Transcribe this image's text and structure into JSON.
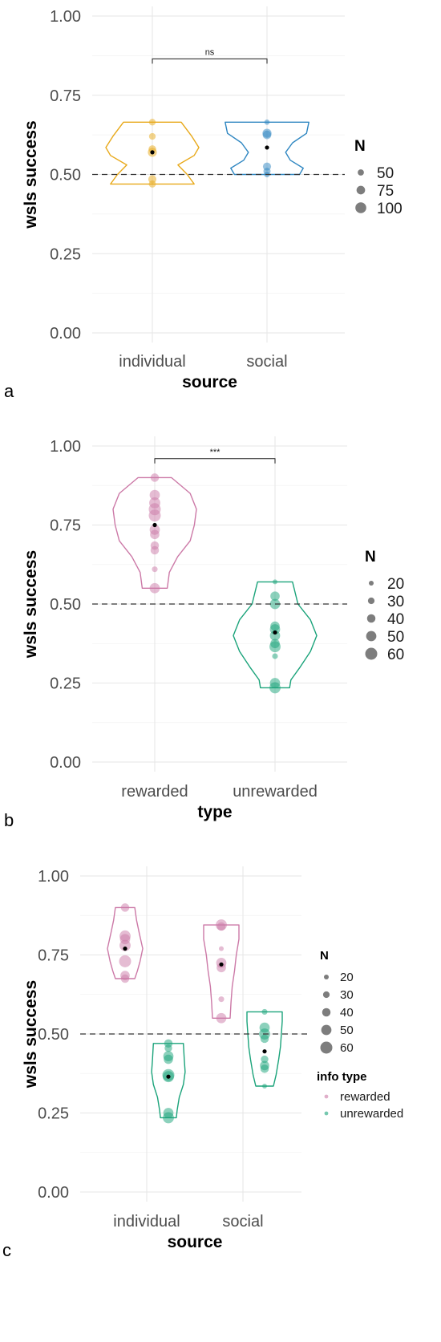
{
  "chart_data": [
    {
      "type": "violin",
      "panel_label": "a",
      "xlabel": "source",
      "ylabel": "wsls success",
      "categories": [
        "individual",
        "social"
      ],
      "ylim": [
        0,
        1
      ],
      "yticks": [
        "0.00",
        "0.25",
        "0.50",
        "0.75",
        "1.00"
      ],
      "reference_line": 0.5,
      "grid": true,
      "colors": [
        "#E8A91A",
        "#2E86C1"
      ],
      "significance": {
        "label": "ns",
        "y": 0.865
      },
      "means": [
        0.57,
        0.585
      ],
      "groups": [
        {
          "name": "individual",
          "color": "#E8A91A",
          "min": 0.47,
          "max": 0.665,
          "profile": [
            [
              0.47,
              0.9
            ],
            [
              0.5,
              0.75
            ],
            [
              0.53,
              0.55
            ],
            [
              0.56,
              0.9
            ],
            [
              0.585,
              1.0
            ],
            [
              0.62,
              0.85
            ],
            [
              0.665,
              0.62
            ]
          ],
          "points": [
            [
              0.665,
              55
            ],
            [
              0.62,
              55
            ],
            [
              0.58,
              65
            ],
            [
              0.57,
              80
            ],
            [
              0.485,
              70
            ],
            [
              0.47,
              60
            ]
          ]
        },
        {
          "name": "social",
          "color": "#2E86C1",
          "min": 0.5,
          "max": 0.665,
          "profile": [
            [
              0.5,
              0.7
            ],
            [
              0.52,
              0.78
            ],
            [
              0.545,
              0.5
            ],
            [
              0.57,
              0.4
            ],
            [
              0.6,
              0.55
            ],
            [
              0.63,
              0.85
            ],
            [
              0.665,
              0.9
            ]
          ],
          "points": [
            [
              0.665,
              40
            ],
            [
              0.63,
              80
            ],
            [
              0.625,
              75
            ],
            [
              0.525,
              70
            ],
            [
              0.51,
              60
            ],
            [
              0.5,
              45
            ]
          ]
        }
      ],
      "legend": {
        "title": "N",
        "entries": [
          {
            "label": "50",
            "size": 50
          },
          {
            "label": "75",
            "size": 75
          },
          {
            "label": "100",
            "size": 100
          }
        ],
        "size_min": 40,
        "size_max": 100,
        "r_min": 3.3,
        "r_max": 6.8
      }
    },
    {
      "type": "violin",
      "panel_label": "b",
      "xlabel": "type",
      "ylabel": "wsls success",
      "categories": [
        "rewarded",
        "unrewarded"
      ],
      "ylim": [
        0,
        1
      ],
      "yticks": [
        "0.00",
        "0.25",
        "0.50",
        "0.75",
        "1.00"
      ],
      "reference_line": 0.5,
      "grid": true,
      "colors": [
        "#CC79A7",
        "#1AA37A"
      ],
      "significance": {
        "label": "***",
        "y": 0.96
      },
      "means": [
        0.75,
        0.41
      ],
      "groups": [
        {
          "name": "rewarded",
          "color": "#CC79A7",
          "min": 0.55,
          "max": 0.9,
          "profile": [
            [
              0.55,
              0.3
            ],
            [
              0.6,
              0.35
            ],
            [
              0.65,
              0.55
            ],
            [
              0.7,
              0.85
            ],
            [
              0.75,
              0.95
            ],
            [
              0.8,
              1.0
            ],
            [
              0.85,
              0.85
            ],
            [
              0.9,
              0.4
            ]
          ],
          "points": [
            [
              0.9,
              40
            ],
            [
              0.845,
              50
            ],
            [
              0.82,
              55
            ],
            [
              0.8,
              60
            ],
            [
              0.78,
              60
            ],
            [
              0.735,
              50
            ],
            [
              0.72,
              45
            ],
            [
              0.685,
              40
            ],
            [
              0.67,
              40
            ],
            [
              0.61,
              25
            ],
            [
              0.55,
              50
            ]
          ]
        },
        {
          "name": "unrewarded",
          "color": "#1AA37A",
          "min": 0.235,
          "max": 0.57,
          "profile": [
            [
              0.235,
              0.35
            ],
            [
              0.26,
              0.38
            ],
            [
              0.3,
              0.6
            ],
            [
              0.35,
              0.85
            ],
            [
              0.4,
              1.0
            ],
            [
              0.45,
              0.85
            ],
            [
              0.5,
              0.55
            ],
            [
              0.57,
              0.42
            ]
          ],
          "points": [
            [
              0.57,
              20
            ],
            [
              0.525,
              45
            ],
            [
              0.5,
              50
            ],
            [
              0.43,
              45
            ],
            [
              0.42,
              50
            ],
            [
              0.4,
              50
            ],
            [
              0.375,
              45
            ],
            [
              0.365,
              55
            ],
            [
              0.335,
              25
            ],
            [
              0.25,
              50
            ],
            [
              0.235,
              55
            ]
          ]
        }
      ],
      "legend": {
        "title": "N",
        "entries": [
          {
            "label": "20",
            "size": 20
          },
          {
            "label": "30",
            "size": 30
          },
          {
            "label": "40",
            "size": 40
          },
          {
            "label": "50",
            "size": 50
          },
          {
            "label": "60",
            "size": 60
          }
        ],
        "size_min": 20,
        "size_max": 60,
        "r_min": 3,
        "r_max": 7.5
      }
    },
    {
      "type": "violin",
      "panel_label": "c",
      "xlabel": "source",
      "ylabel": "wsls success",
      "categories": [
        "individual",
        "social"
      ],
      "ylim": [
        0,
        1
      ],
      "yticks": [
        "0.00",
        "0.25",
        "0.50",
        "0.75",
        "1.00"
      ],
      "reference_line": 0.5,
      "grid": true,
      "colors": [
        "#CC79A7",
        "#1AA37A"
      ],
      "means": [
        0.77,
        0.365,
        0.72,
        0.445
      ],
      "groups": [
        {
          "name": "individual rewarded",
          "category": 0,
          "offset": -1,
          "color": "#CC79A7",
          "min": 0.675,
          "max": 0.9,
          "profile": [
            [
              0.675,
              0.55
            ],
            [
              0.7,
              0.7
            ],
            [
              0.73,
              0.85
            ],
            [
              0.77,
              1.0
            ],
            [
              0.82,
              0.8
            ],
            [
              0.86,
              0.65
            ],
            [
              0.9,
              0.55
            ]
          ],
          "points": [
            [
              0.9,
              40
            ],
            [
              0.81,
              55
            ],
            [
              0.8,
              50
            ],
            [
              0.78,
              55
            ],
            [
              0.73,
              60
            ],
            [
              0.685,
              45
            ],
            [
              0.675,
              40
            ]
          ]
        },
        {
          "name": "individual unrewarded",
          "category": 0,
          "offset": 1,
          "color": "#1AA37A",
          "min": 0.235,
          "max": 0.47,
          "profile": [
            [
              0.235,
              0.45
            ],
            [
              0.26,
              0.5
            ],
            [
              0.3,
              0.62
            ],
            [
              0.34,
              0.85
            ],
            [
              0.38,
              0.95
            ],
            [
              0.42,
              0.9
            ],
            [
              0.47,
              0.85
            ]
          ],
          "points": [
            [
              0.47,
              40
            ],
            [
              0.455,
              35
            ],
            [
              0.43,
              50
            ],
            [
              0.42,
              45
            ],
            [
              0.37,
              60
            ],
            [
              0.365,
              55
            ],
            [
              0.25,
              50
            ],
            [
              0.235,
              55
            ]
          ]
        },
        {
          "name": "social rewarded",
          "category": 1,
          "offset": -1,
          "color": "#CC79A7",
          "min": 0.55,
          "max": 0.845,
          "profile": [
            [
              0.55,
              0.5
            ],
            [
              0.6,
              0.55
            ],
            [
              0.65,
              0.62
            ],
            [
              0.7,
              0.75
            ],
            [
              0.75,
              0.85
            ],
            [
              0.8,
              1.0
            ],
            [
              0.845,
              1.0
            ]
          ],
          "points": [
            [
              0.845,
              55
            ],
            [
              0.84,
              40
            ],
            [
              0.77,
              20
            ],
            [
              0.725,
              50
            ],
            [
              0.71,
              45
            ],
            [
              0.61,
              25
            ],
            [
              0.55,
              50
            ]
          ]
        },
        {
          "name": "social unrewarded",
          "category": 1,
          "offset": 1,
          "color": "#1AA37A",
          "min": 0.335,
          "max": 0.57,
          "profile": [
            [
              0.335,
              0.5
            ],
            [
              0.37,
              0.65
            ],
            [
              0.42,
              0.8
            ],
            [
              0.46,
              0.9
            ],
            [
              0.5,
              0.95
            ],
            [
              0.54,
              1.0
            ],
            [
              0.57,
              1.0
            ]
          ],
          "points": [
            [
              0.57,
              25
            ],
            [
              0.52,
              50
            ],
            [
              0.5,
              55
            ],
            [
              0.485,
              40
            ],
            [
              0.42,
              35
            ],
            [
              0.4,
              45
            ],
            [
              0.39,
              40
            ],
            [
              0.335,
              20
            ]
          ]
        }
      ],
      "legend": {
        "title": "N",
        "entries": [
          {
            "label": "20",
            "size": 20
          },
          {
            "label": "30",
            "size": 30
          },
          {
            "label": "40",
            "size": 40
          },
          {
            "label": "50",
            "size": 50
          },
          {
            "label": "60",
            "size": 60
          }
        ],
        "size_min": 20,
        "size_max": 60,
        "r_min": 3,
        "r_max": 7.5,
        "color_title": "info type",
        "color_entries": [
          {
            "label": "rewarded",
            "color": "#CC79A7"
          },
          {
            "label": "unrewarded",
            "color": "#1AA37A"
          }
        ]
      }
    }
  ]
}
